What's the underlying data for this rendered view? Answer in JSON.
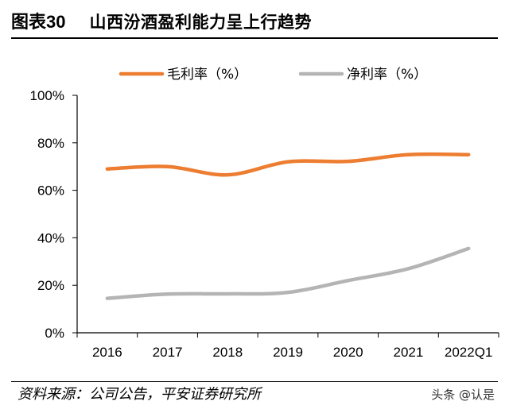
{
  "header": {
    "figure_label": "图表30",
    "title": "山西汾酒盈利能力呈上行趋势"
  },
  "footer": {
    "source": "资料来源：公司公告，平安证券研究所",
    "watermark": "头条 @认是"
  },
  "chart_data": {
    "type": "line",
    "title": "山西汾酒盈利能力呈上行趋势",
    "categories": [
      "2016",
      "2017",
      "2018",
      "2019",
      "2020",
      "2021",
      "2022Q1"
    ],
    "series": [
      {
        "name": "毛利率（%）",
        "color": "#ED7D31",
        "values": [
          69,
          70,
          66.5,
          72,
          72.2,
          75,
          75
        ]
      },
      {
        "name": "净利率（%）",
        "color": "#B4B4B4",
        "values": [
          14.5,
          16.3,
          16.4,
          17,
          22,
          27,
          35.5
        ]
      }
    ],
    "y_ticks": [
      "0%",
      "20%",
      "40%",
      "60%",
      "80%",
      "100%"
    ],
    "ylim": [
      0,
      100
    ],
    "xlabel": "",
    "ylabel": "",
    "grid": false,
    "legend_position": "top"
  }
}
